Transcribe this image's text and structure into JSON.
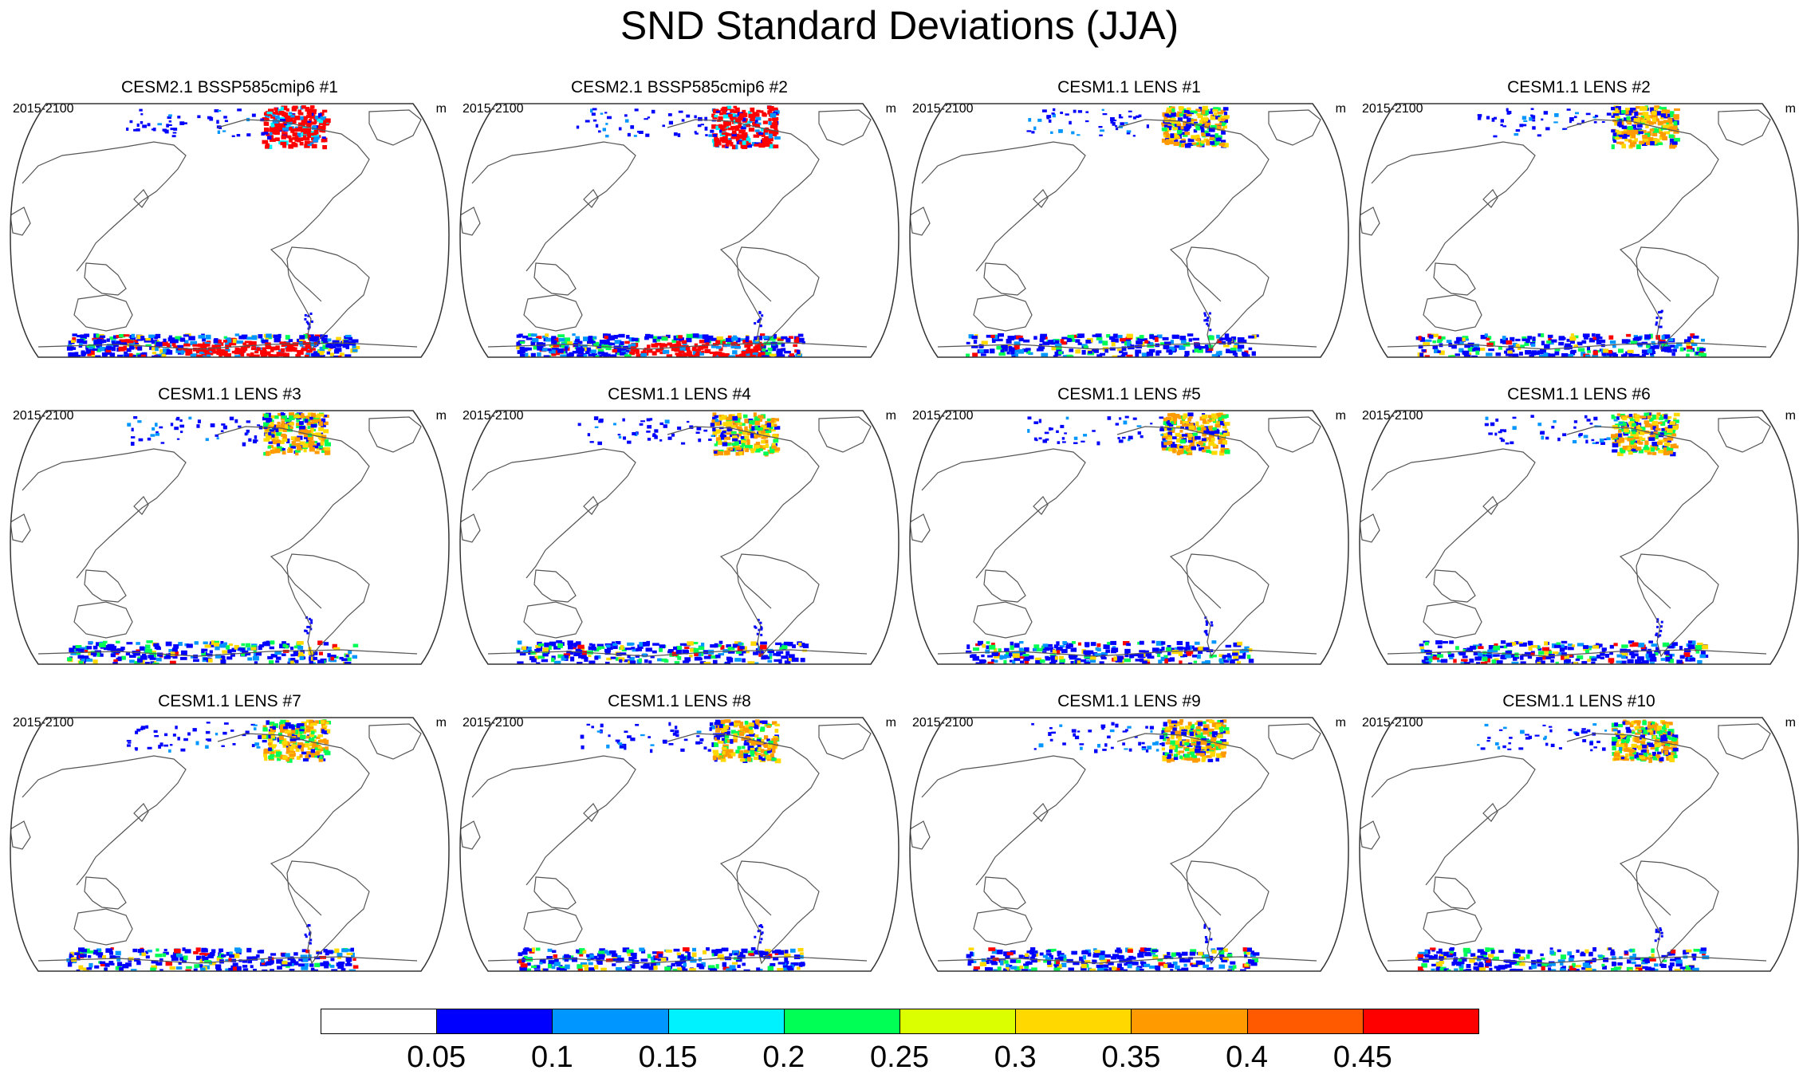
{
  "chart_data": {
    "type": "heatmap",
    "title": "SND Standard Deviations (JJA)",
    "panels": [
      {
        "title": "CESM2.1 BSSP585cmip6 #1",
        "period": "2015-2100",
        "units": "m",
        "intensity": "high"
      },
      {
        "title": "CESM2.1 BSSP585cmip6 #2",
        "period": "2015-2100",
        "units": "m",
        "intensity": "high"
      },
      {
        "title": "CESM1.1 LENS #1",
        "period": "2015-2100",
        "units": "m",
        "intensity": "medium"
      },
      {
        "title": "CESM1.1 LENS #2",
        "period": "2015-2100",
        "units": "m",
        "intensity": "medium"
      },
      {
        "title": "CESM1.1 LENS #3",
        "period": "2015-2100",
        "units": "m",
        "intensity": "medium"
      },
      {
        "title": "CESM1.1 LENS #4",
        "period": "2015-2100",
        "units": "m",
        "intensity": "medium"
      },
      {
        "title": "CESM1.1 LENS #5",
        "period": "2015-2100",
        "units": "m",
        "intensity": "medium"
      },
      {
        "title": "CESM1.1 LENS #6",
        "period": "2015-2100",
        "units": "m",
        "intensity": "medium"
      },
      {
        "title": "CESM1.1 LENS #7",
        "period": "2015-2100",
        "units": "m",
        "intensity": "medium"
      },
      {
        "title": "CESM1.1 LENS #8",
        "period": "2015-2100",
        "units": "m",
        "intensity": "medium"
      },
      {
        "title": "CESM1.1 LENS #9",
        "period": "2015-2100",
        "units": "m",
        "intensity": "medium"
      },
      {
        "title": "CESM1.1 LENS #10",
        "period": "2015-2100",
        "units": "m",
        "intensity": "medium"
      }
    ],
    "colorbar": {
      "levels": [
        "0.05",
        "0.1",
        "0.15",
        "0.2",
        "0.25",
        "0.3",
        "0.35",
        "0.4",
        "0.45"
      ],
      "colors": [
        "#ffffff",
        "#0000ff",
        "#0096ff",
        "#00f2ff",
        "#00ff55",
        "#dcff00",
        "#ffd800",
        "#ff9a00",
        "#ff5a00",
        "#ff0000"
      ]
    }
  }
}
